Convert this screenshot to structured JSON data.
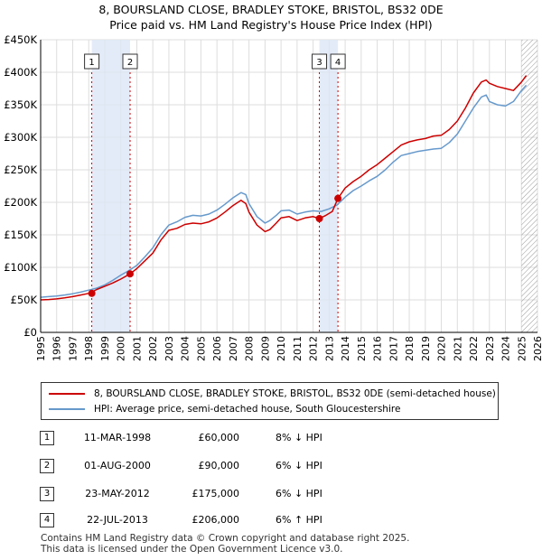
{
  "title_line1": "8, BOURSLAND CLOSE, BRADLEY STOKE, BRISTOL, BS32 0DE",
  "title_line2": "Price paid vs. HM Land Registry's House Price Index (HPI)",
  "colors": {
    "property": "#cc0000",
    "hpi": "#6699cc",
    "band": "#dde6f6",
    "grid": "#dddddd",
    "marker_line": "#cc0000"
  },
  "chart_data": {
    "type": "line",
    "title": "Price paid vs. HM Land Registry's House Price Index (HPI)",
    "xlabel": "",
    "ylabel": "",
    "xlim": [
      1995,
      2026
    ],
    "ylim": [
      0,
      450000
    ],
    "x_ticks": [
      1995,
      1996,
      1997,
      1998,
      1999,
      2000,
      2001,
      2002,
      2003,
      2004,
      2005,
      2006,
      2007,
      2008,
      2009,
      2010,
      2011,
      2012,
      2013,
      2014,
      2015,
      2016,
      2017,
      2018,
      2019,
      2020,
      2021,
      2022,
      2023,
      2024,
      2025,
      2026
    ],
    "y_ticks": [
      {
        "value": 0,
        "label": "£0"
      },
      {
        "value": 50000,
        "label": "£50K"
      },
      {
        "value": 100000,
        "label": "£100K"
      },
      {
        "value": 150000,
        "label": "£150K"
      },
      {
        "value": 200000,
        "label": "£200K"
      },
      {
        "value": 250000,
        "label": "£250K"
      },
      {
        "value": 300000,
        "label": "£300K"
      },
      {
        "value": 350000,
        "label": "£350K"
      },
      {
        "value": 400000,
        "label": "£400K"
      },
      {
        "value": 450000,
        "label": "£450K"
      }
    ],
    "series": [
      {
        "name": "8, BOURSLAND CLOSE, BRADLEY STOKE, BRISTOL, BS32 0DE (semi-detached house)",
        "color": "#cc0000",
        "x": [
          1995,
          1995.5,
          1996,
          1996.5,
          1997,
          1997.5,
          1998,
          1998.2,
          1998.5,
          1999,
          1999.5,
          2000,
          2000.58,
          2001,
          2001.5,
          2002,
          2002.5,
          2003,
          2003.5,
          2004,
          2004.5,
          2005,
          2005.5,
          2006,
          2006.5,
          2007,
          2007.5,
          2007.8,
          2008,
          2008.5,
          2009,
          2009.3,
          2009.7,
          2010,
          2010.5,
          2011,
          2011.5,
          2012,
          2012.39,
          2012.8,
          2013.2,
          2013.55,
          2014,
          2014.5,
          2015,
          2015.5,
          2016,
          2016.5,
          2017,
          2017.5,
          2018,
          2018.5,
          2019,
          2019.5,
          2020,
          2020.5,
          2021,
          2021.5,
          2022,
          2022.5,
          2022.8,
          2023,
          2023.5,
          2024,
          2024.5,
          2025,
          2025.3
        ],
        "y": [
          50000,
          50500,
          51500,
          53000,
          55000,
          57500,
          60000,
          62000,
          66000,
          71000,
          76000,
          82000,
          90000,
          98000,
          110000,
          122000,
          142000,
          157000,
          160000,
          166000,
          168000,
          167000,
          170000,
          176000,
          185000,
          195000,
          203000,
          198000,
          185000,
          165000,
          155000,
          158000,
          168000,
          176000,
          178000,
          172000,
          176000,
          178000,
          175000,
          180000,
          186000,
          206000,
          222000,
          232000,
          240000,
          250000,
          258000,
          268000,
          278000,
          288000,
          293000,
          296000,
          298000,
          302000,
          303000,
          312000,
          325000,
          345000,
          368000,
          385000,
          388000,
          383000,
          378000,
          375000,
          372000,
          385000,
          395000
        ]
      },
      {
        "name": "HPI: Average price, semi-detached house, South Gloucestershire",
        "color": "#6699cc",
        "x": [
          1995,
          1995.5,
          1996,
          1996.5,
          1997,
          1997.5,
          1998,
          1998.5,
          1999,
          1999.5,
          2000,
          2000.5,
          2001,
          2001.5,
          2002,
          2002.5,
          2003,
          2003.5,
          2004,
          2004.5,
          2005,
          2005.5,
          2006,
          2006.5,
          2007,
          2007.5,
          2007.8,
          2008,
          2008.5,
          2009,
          2009.3,
          2009.7,
          2010,
          2010.5,
          2011,
          2011.5,
          2012,
          2012.5,
          2013,
          2013.5,
          2014,
          2014.5,
          2015,
          2015.5,
          2016,
          2016.5,
          2017,
          2017.5,
          2018,
          2018.5,
          2019,
          2019.5,
          2020,
          2020.5,
          2021,
          2021.5,
          2022,
          2022.5,
          2022.8,
          2023,
          2023.5,
          2024,
          2024.5,
          2025,
          2025.3
        ],
        "y": [
          54000,
          55000,
          56000,
          57500,
          59500,
          62000,
          65000,
          68000,
          73000,
          80000,
          88000,
          95000,
          103000,
          116000,
          130000,
          150000,
          165000,
          170000,
          177000,
          180000,
          179000,
          182000,
          188000,
          197000,
          207000,
          215000,
          212000,
          198000,
          178000,
          168000,
          172000,
          180000,
          187000,
          188000,
          182000,
          185000,
          187000,
          186000,
          190000,
          196000,
          208000,
          218000,
          225000,
          233000,
          240000,
          250000,
          262000,
          272000,
          275000,
          278000,
          280000,
          282000,
          283000,
          292000,
          305000,
          325000,
          345000,
          362000,
          365000,
          355000,
          350000,
          348000,
          355000,
          372000,
          380000
        ]
      }
    ],
    "sales": [
      {
        "label": "1",
        "x": 1998.19,
        "price": 60000
      },
      {
        "label": "2",
        "x": 2000.58,
        "price": 90000
      },
      {
        "label": "3",
        "x": 2012.39,
        "price": 175000
      },
      {
        "label": "4",
        "x": 2013.55,
        "price": 206000
      }
    ],
    "band": [
      1998.19,
      2000.58
    ],
    "band2": [
      2012.39,
      2013.55
    ],
    "hatch_from": 2025.0
  },
  "legend": {
    "property_label": "8, BOURSLAND CLOSE, BRADLEY STOKE, BRISTOL, BS32 0DE (semi-detached house)",
    "hpi_label": "HPI: Average price, semi-detached house, South Gloucestershire"
  },
  "table": [
    {
      "num": "1",
      "date": "11-MAR-1998",
      "price": "£60,000",
      "hpi": "8% ↓ HPI"
    },
    {
      "num": "2",
      "date": "01-AUG-2000",
      "price": "£90,000",
      "hpi": "6% ↓ HPI"
    },
    {
      "num": "3",
      "date": "23-MAY-2012",
      "price": "£175,000",
      "hpi": "6% ↓ HPI"
    },
    {
      "num": "4",
      "date": "22-JUL-2013",
      "price": "£206,000",
      "hpi": "6% ↑ HPI"
    }
  ],
  "footer_line1": "Contains HM Land Registry data © Crown copyright and database right 2025.",
  "footer_line2": "This data is licensed under the Open Government Licence v3.0."
}
